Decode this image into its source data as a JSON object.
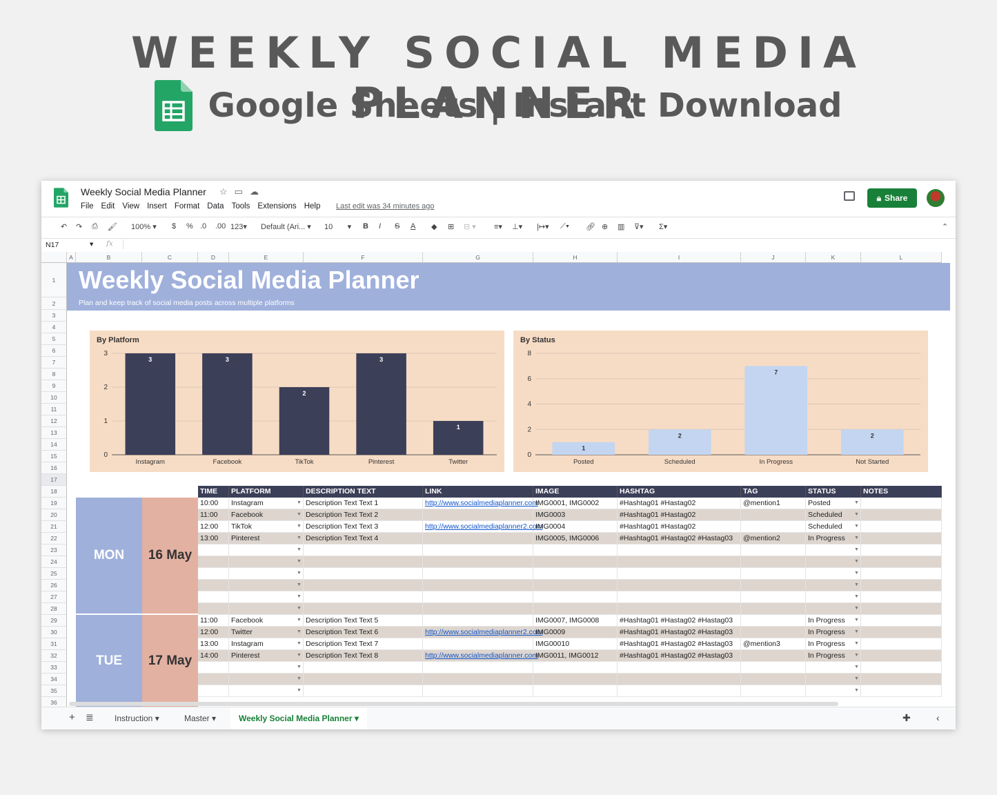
{
  "hero": {
    "title": "WEEKLY SOCIAL MEDIA PLANNER",
    "subtitle": "Google Sheets | Instant Download"
  },
  "app": {
    "doc_title": "Weekly Social Media Planner",
    "menu": [
      "File",
      "Edit",
      "View",
      "Insert",
      "Format",
      "Data",
      "Tools",
      "Extensions",
      "Help"
    ],
    "last_edit": "Last edit was 34 minutes ago",
    "share_label": "Share",
    "zoom": "100%",
    "font": "Default (Ari...",
    "font_size": "10",
    "currency": "$",
    "percent": "%",
    "dec_less": ".0",
    "dec_more": ".00",
    "num_format": "123",
    "cell_ref": "N17",
    "fx": "fx"
  },
  "columns": [
    "A",
    "B",
    "C",
    "D",
    "E",
    "F",
    "G",
    "H",
    "I",
    "J",
    "K",
    "L"
  ],
  "banner": {
    "title": "Weekly Social Media Planner",
    "subtitle": "Plan and keep track of social media posts across multiple platforms"
  },
  "chart_data": [
    {
      "type": "bar",
      "title": "By Platform",
      "categories": [
        "Instagram",
        "Facebook",
        "TikTok",
        "Pinterest",
        "Twitter"
      ],
      "values": [
        3,
        3,
        2,
        3,
        1
      ],
      "ylim": [
        0,
        3
      ],
      "yticks": [
        0,
        1,
        2,
        3
      ],
      "color": "#3c3f58"
    },
    {
      "type": "bar",
      "title": "By Status",
      "categories": [
        "Posted",
        "Scheduled",
        "In Progress",
        "Not Started"
      ],
      "values": [
        1,
        2,
        7,
        2
      ],
      "ylim": [
        0,
        8
      ],
      "yticks": [
        0,
        2,
        4,
        6,
        8
      ],
      "color": "#c3d5f0"
    }
  ],
  "table": {
    "headers": [
      "TIME",
      "PLATFORM",
      "DESCRIPTION TEXT",
      "LINK",
      "IMAGE",
      "HASHTAG",
      "TAG",
      "STATUS",
      "NOTES"
    ],
    "days": [
      {
        "day": "MON",
        "date": "16 May"
      },
      {
        "day": "TUE",
        "date": "17 May"
      }
    ],
    "rows": [
      [
        "10:00",
        "Instagram",
        "Description Text Text 1",
        "http://www.socialmediaplanner.com",
        "IMG0001, IMG0002",
        "#Hashtag01 #Hastag02",
        "@mention1",
        "Posted",
        ""
      ],
      [
        "11:00",
        "Facebook",
        "Description Text Text 2",
        "",
        "IMG0003",
        "#Hashtag01 #Hastag02",
        "",
        "Scheduled",
        ""
      ],
      [
        "12:00",
        "TikTok",
        "Description Text Text 3",
        "http://www.socialmediaplanner2.com",
        "IMG0004",
        "#Hashtag01 #Hastag02",
        "",
        "Scheduled",
        ""
      ],
      [
        "13:00",
        "Pinterest",
        "Description Text Text 4",
        "",
        "IMG0005, IMG0006",
        "#Hashtag01 #Hastag02 #Hastag03",
        "@mention2",
        "In Progress",
        ""
      ],
      [
        "",
        "",
        "",
        "",
        "",
        "",
        "",
        "",
        ""
      ],
      [
        "",
        "",
        "",
        "",
        "",
        "",
        "",
        "",
        ""
      ],
      [
        "",
        "",
        "",
        "",
        "",
        "",
        "",
        "",
        ""
      ],
      [
        "",
        "",
        "",
        "",
        "",
        "",
        "",
        "",
        ""
      ],
      [
        "",
        "",
        "",
        "",
        "",
        "",
        "",
        "",
        ""
      ],
      [
        "",
        "",
        "",
        "",
        "",
        "",
        "",
        "",
        ""
      ],
      [
        "11:00",
        "Facebook",
        "Description Text Text 5",
        "",
        "IMG0007, IMG0008",
        "#Hashtag01 #Hastag02 #Hastag03",
        "",
        "In Progress",
        ""
      ],
      [
        "12:00",
        "Twitter",
        "Description Text Text 6",
        "http://www.socialmediaplanner2.com",
        "IMG0009",
        "#Hashtag01 #Hastag02 #Hastag03",
        "",
        "In Progress",
        ""
      ],
      [
        "13:00",
        "Instagram",
        "Description Text Text 7",
        "",
        "IMG00010",
        "#Hashtag01 #Hastag02 #Hastag03",
        "@mention3",
        "In Progress",
        ""
      ],
      [
        "14:00",
        "Pinterest",
        "Description Text Text 8",
        "http://www.socialmediaplanner.com",
        "IMG0011, IMG0012",
        "#Hashtag01 #Hastag02 #Hastag03",
        "",
        "In Progress",
        ""
      ],
      [
        "",
        "",
        "",
        "",
        "",
        "",
        "",
        "",
        ""
      ],
      [
        "",
        "",
        "",
        "",
        "",
        "",
        "",
        "",
        ""
      ],
      [
        "",
        "",
        "",
        "",
        "",
        "",
        "",
        "",
        ""
      ]
    ]
  },
  "sheets": [
    "Instruction",
    "Master",
    "Weekly Social Media Planner"
  ],
  "active_sheet": "Weekly Social Media Planner"
}
